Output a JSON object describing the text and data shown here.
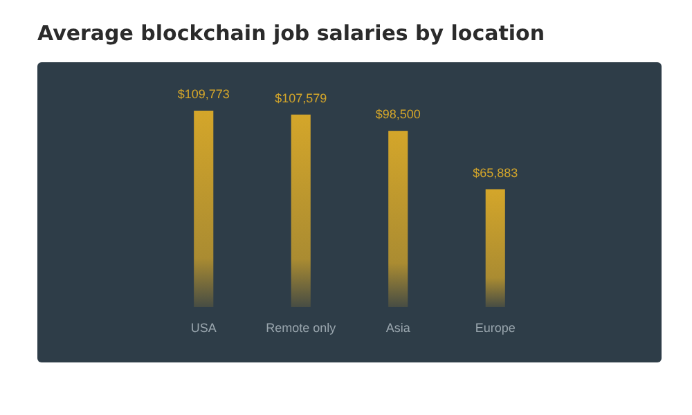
{
  "chart_data": {
    "type": "bar",
    "title": "Average blockchain job salaries by location",
    "categories": [
      "USA",
      "Remote only",
      "Asia",
      "Europe"
    ],
    "values": [
      109773,
      107579,
      98500,
      65883
    ],
    "value_labels": [
      "$109,773",
      "$107,579",
      "$98,500",
      "$65,883"
    ],
    "color": "#d4a62a"
  }
}
